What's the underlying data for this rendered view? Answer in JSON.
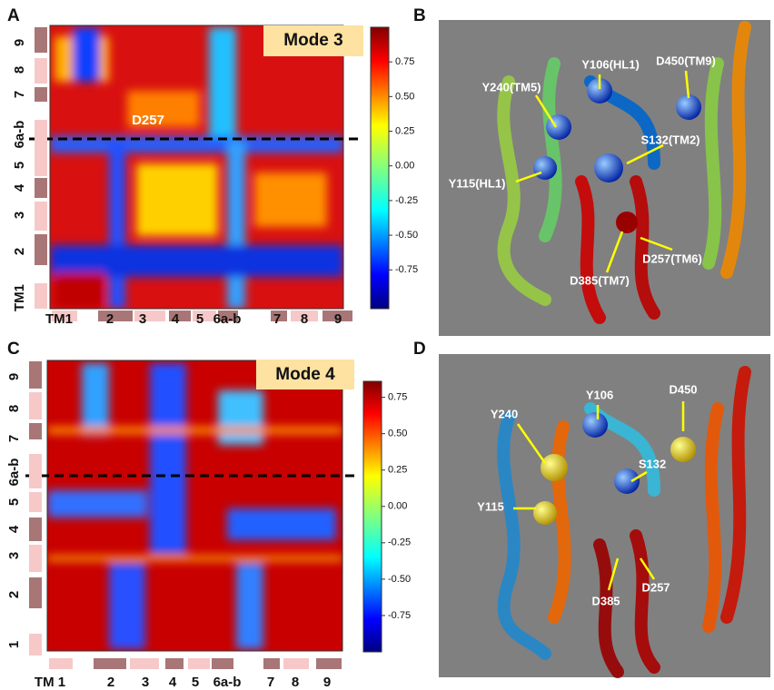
{
  "panels": [
    {
      "letter": "A",
      "title": "Mode 3",
      "annotation": "D257",
      "x_segments": [
        "TM1",
        "2",
        "3",
        "4",
        "5",
        "6a-b",
        "7",
        "8",
        "9"
      ],
      "y_segments": [
        "9",
        "8",
        "7",
        "6a-b",
        "5",
        "4",
        "3",
        "2",
        "TM1"
      ],
      "clim": [
        -1.03,
        1.0
      ],
      "colorbar_ticks": [
        0.75,
        {
          "value": 0.5,
          "label": "0.50"
        },
        0.25,
        {
          "value": 0,
          "label": "0.00"
        },
        -0.25,
        {
          "value": -0.5,
          "label": "-0.50"
        },
        -0.75
      ]
    },
    {
      "letter": "B",
      "residues": [
        "Y106(HL1)",
        "D450(TM9)",
        "Y240(TM5)",
        "S132(TM2)",
        "Y115(HL1)",
        "D257(TM6)",
        "D385(TM7)"
      ]
    },
    {
      "letter": "C",
      "title": "Mode 4",
      "x_segments": [
        "TM 1",
        "2",
        "3",
        "4",
        "5",
        "6a-b",
        "7",
        "8",
        "9"
      ],
      "y_segments": [
        "9",
        "8",
        "7",
        "6a-b",
        "5",
        "4",
        "3",
        "2",
        "1"
      ],
      "clim": [
        -1.0,
        0.86
      ],
      "colorbar_ticks": [
        0.75,
        {
          "value": 0.5,
          "label": "0.50"
        },
        0.25,
        {
          "value": 0,
          "label": "0.00"
        },
        -0.25,
        {
          "value": -0.5,
          "label": "-0.50"
        },
        -0.75
      ]
    },
    {
      "letter": "D",
      "residues": [
        "Y106",
        "D450",
        "Y240",
        "S132",
        "Y115",
        "D385",
        "D257"
      ]
    }
  ]
}
